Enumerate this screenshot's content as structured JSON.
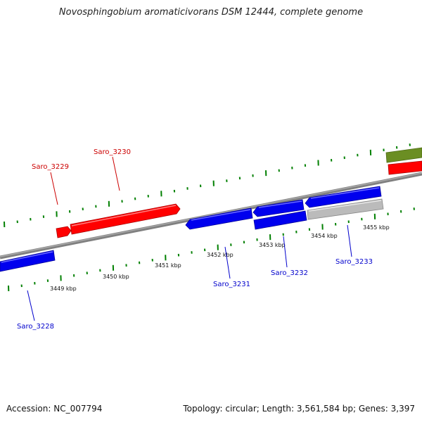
{
  "title": "Novosphingobium aromaticivorans DSM 12444, complete genome",
  "accession_text": "Accession: NC_007794",
  "summary_text": "Topology: circular; Length: 3,561,584 bp; Genes: 3,397",
  "colors": {
    "forward_gene": "#ff0000",
    "reverse_gene": "#0000ee",
    "pseudo_gene": "#bbbbbb",
    "other_gene": "#6b8e23",
    "backbone": "#808080",
    "ticks": "#008000",
    "forward_label": "#cc0000",
    "reverse_label": "#0000cc"
  },
  "kbp_labels": [
    "3449 kbp",
    "3450 kbp",
    "3451 kbp",
    "3452 kbp",
    "3453 kbp",
    "3454 kbp",
    "3455 kbp"
  ],
  "gene_labels": {
    "saro_3228": "Saro_3228",
    "saro_3229": "Saro_3229",
    "saro_3230": "Saro_3230",
    "saro_3231": "Saro_3231",
    "saro_3232": "Saro_3232",
    "saro_3233": "Saro_3233"
  }
}
